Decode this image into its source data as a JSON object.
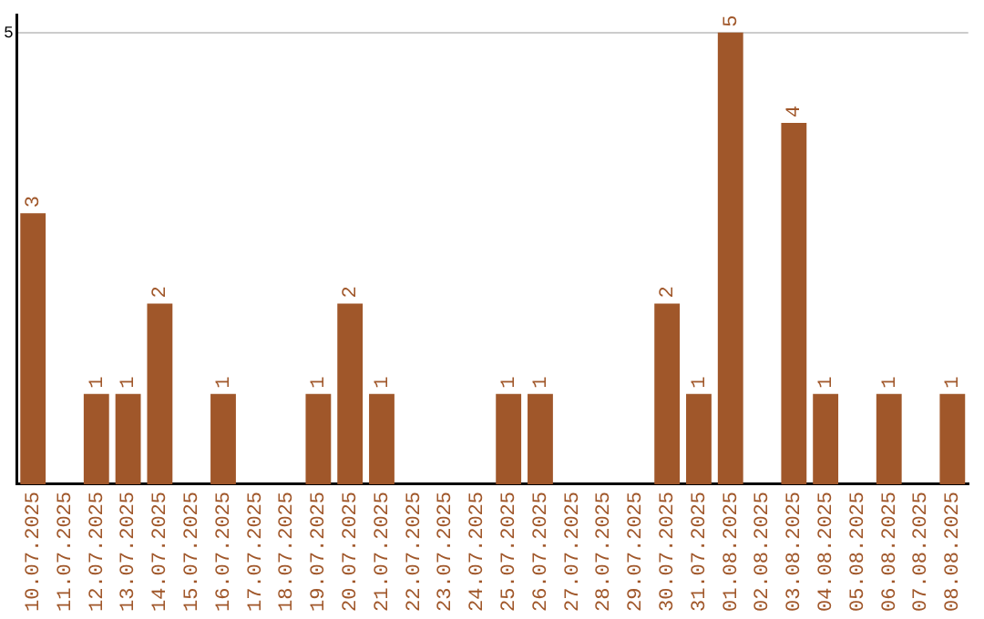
{
  "chart_data": {
    "type": "bar",
    "categories": [
      "10.07.2025",
      "11.07.2025",
      "12.07.2025",
      "13.07.2025",
      "14.07.2025",
      "15.07.2025",
      "16.07.2025",
      "17.07.2025",
      "18.07.2025",
      "19.07.2025",
      "20.07.2025",
      "21.07.2025",
      "22.07.2025",
      "23.07.2025",
      "24.07.2025",
      "25.07.2025",
      "26.07.2025",
      "27.07.2025",
      "28.07.2025",
      "29.07.2025",
      "30.07.2025",
      "31.07.2025",
      "01.08.2025",
      "02.08.2025",
      "03.08.2025",
      "04.08.2025",
      "05.08.2025",
      "06.08.2025",
      "07.08.2025",
      "08.08.2025"
    ],
    "values": [
      3,
      0,
      1,
      1,
      2,
      0,
      1,
      0,
      0,
      1,
      2,
      1,
      0,
      0,
      0,
      1,
      1,
      0,
      0,
      0,
      2,
      1,
      5,
      0,
      4,
      1,
      0,
      1,
      0,
      1
    ],
    "value_labels": [
      "3",
      null,
      "1",
      "1",
      "2",
      null,
      "1",
      null,
      null,
      "1",
      "2",
      "1",
      null,
      null,
      null,
      "1",
      "1",
      null,
      null,
      null,
      "2",
      "1",
      "5",
      null,
      "4",
      "1",
      null,
      "1",
      null,
      "1"
    ],
    "color": "#a0572a",
    "ylim": [
      0,
      5.2
    ],
    "yticks": [
      5
    ],
    "grid": "y",
    "legend": false
  }
}
